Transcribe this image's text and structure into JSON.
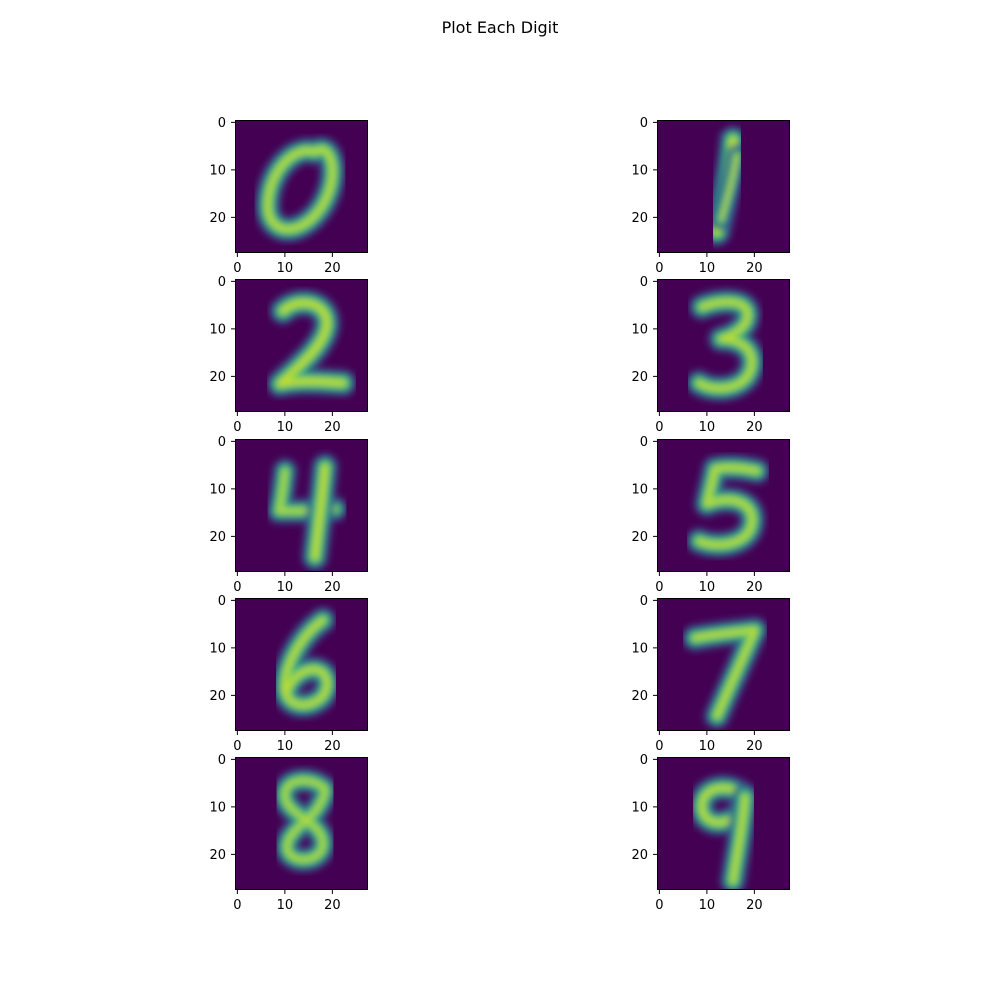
{
  "title": "Plot Each Digit",
  "colormap": "viridis",
  "chart_data": [
    {
      "type": "heatmap",
      "digit": "0",
      "xlim": [
        0,
        27
      ],
      "ylim": [
        27,
        0
      ],
      "xticks": [
        "0",
        "10",
        "20"
      ],
      "yticks": [
        "0",
        "10",
        "20"
      ]
    },
    {
      "type": "heatmap",
      "digit": "1",
      "xlim": [
        0,
        27
      ],
      "ylim": [
        27,
        0
      ],
      "xticks": [
        "0",
        "10",
        "20"
      ],
      "yticks": [
        "0",
        "10",
        "20"
      ]
    },
    {
      "type": "heatmap",
      "digit": "2",
      "xlim": [
        0,
        27
      ],
      "ylim": [
        27,
        0
      ],
      "xticks": [
        "0",
        "10",
        "20"
      ],
      "yticks": [
        "0",
        "10",
        "20"
      ]
    },
    {
      "type": "heatmap",
      "digit": "3",
      "xlim": [
        0,
        27
      ],
      "ylim": [
        27,
        0
      ],
      "xticks": [
        "0",
        "10",
        "20"
      ],
      "yticks": [
        "0",
        "10",
        "20"
      ]
    },
    {
      "type": "heatmap",
      "digit": "4",
      "xlim": [
        0,
        27
      ],
      "ylim": [
        27,
        0
      ],
      "xticks": [
        "0",
        "10",
        "20"
      ],
      "yticks": [
        "0",
        "10",
        "20"
      ]
    },
    {
      "type": "heatmap",
      "digit": "5",
      "xlim": [
        0,
        27
      ],
      "ylim": [
        27,
        0
      ],
      "xticks": [
        "0",
        "10",
        "20"
      ],
      "yticks": [
        "0",
        "10",
        "20"
      ]
    },
    {
      "type": "heatmap",
      "digit": "6",
      "xlim": [
        0,
        27
      ],
      "ylim": [
        27,
        0
      ],
      "xticks": [
        "0",
        "10",
        "20"
      ],
      "yticks": [
        "0",
        "10",
        "20"
      ]
    },
    {
      "type": "heatmap",
      "digit": "7",
      "xlim": [
        0,
        27
      ],
      "ylim": [
        27,
        0
      ],
      "xticks": [
        "0",
        "10",
        "20"
      ],
      "yticks": [
        "0",
        "10",
        "20"
      ]
    },
    {
      "type": "heatmap",
      "digit": "8",
      "xlim": [
        0,
        27
      ],
      "ylim": [
        27,
        0
      ],
      "xticks": [
        "0",
        "10",
        "20"
      ],
      "yticks": [
        "0",
        "10",
        "20"
      ]
    },
    {
      "type": "heatmap",
      "digit": "9",
      "xlim": [
        0,
        27
      ],
      "ylim": [
        27,
        0
      ],
      "xticks": [
        "0",
        "10",
        "20"
      ],
      "yticks": [
        "0",
        "10",
        "20"
      ]
    }
  ]
}
